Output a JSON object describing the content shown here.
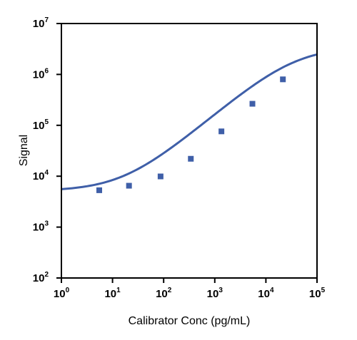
{
  "chart_data": {
    "type": "scatter",
    "title": "",
    "xlabel": "Calibrator Conc (pg/mL)",
    "ylabel": "Signal",
    "xscale": "log",
    "yscale": "log",
    "xlim": [
      1,
      100000
    ],
    "ylim": [
      100,
      10000000
    ],
    "grid": false,
    "legend": "none",
    "x_ticks": [
      {
        "base": "10",
        "exp": "0"
      },
      {
        "base": "10",
        "exp": "1"
      },
      {
        "base": "10",
        "exp": "2"
      },
      {
        "base": "10",
        "exp": "3"
      },
      {
        "base": "10",
        "exp": "4"
      },
      {
        "base": "10",
        "exp": "5"
      }
    ],
    "y_ticks": [
      {
        "base": "10",
        "exp": "2"
      },
      {
        "base": "10",
        "exp": "3"
      },
      {
        "base": "10",
        "exp": "4"
      },
      {
        "base": "10",
        "exp": "5"
      },
      {
        "base": "10",
        "exp": "6"
      },
      {
        "base": "10",
        "exp": "7"
      }
    ],
    "series": [
      {
        "points": [
          {
            "x": 5.5,
            "y": 5300
          },
          {
            "x": 21,
            "y": 6500
          },
          {
            "x": 87,
            "y": 9900
          },
          {
            "x": 340,
            "y": 22000
          },
          {
            "x": 1350,
            "y": 76000
          },
          {
            "x": 5450,
            "y": 265000
          },
          {
            "x": 21500,
            "y": 800000
          }
        ],
        "fit": {
          "model": "4PL",
          "bottom": 5100,
          "top": 3500000,
          "ec50": 36000,
          "hill": 0.85,
          "x_range": [
            1,
            100000
          ]
        },
        "color": "#3f5fa8"
      }
    ],
    "colors": {
      "axis": "#000000",
      "series": "#3f5fa8"
    }
  }
}
